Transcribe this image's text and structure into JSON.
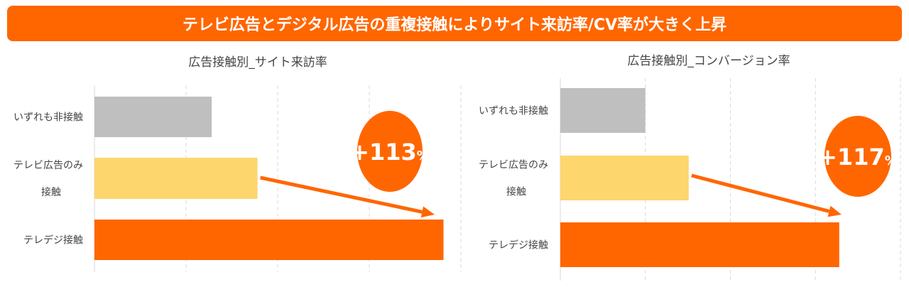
{
  "banner": {
    "title": "テレビ広告とデジタル広告の重複接触によりサイト来訪率/CV率が大きく上昇",
    "color": "#FF6600"
  },
  "chart_data": [
    {
      "type": "bar",
      "orientation": "horizontal",
      "title": "広告接触別_サイト来訪率",
      "categories": [
        [
          "いずれも非接触"
        ],
        [
          "テレビ広告のみ",
          "接触"
        ],
        [
          "テレデジ接触"
        ]
      ],
      "values": [
        1.28,
        1.78,
        3.81
      ],
      "value_units": "relative (gridline units, axis unlabeled)",
      "xlim": [
        0,
        4
      ],
      "grid": true,
      "colors": [
        "#BFBFBF",
        "#FDD66E",
        "#FF6600"
      ],
      "annotation": {
        "value": "+113",
        "suffix": "%"
      }
    },
    {
      "type": "bar",
      "orientation": "horizontal",
      "title": "広告接触別_コンバージョン率",
      "categories": [
        [
          "いずれも非接触"
        ],
        [
          "テレビ広告のみ",
          "接触"
        ],
        [
          "テレデジ接触"
        ]
      ],
      "values": [
        1.0,
        1.51,
        3.28
      ],
      "value_units": "relative (gridline units, axis unlabeled)",
      "xlim": [
        0,
        4
      ],
      "grid": true,
      "colors": [
        "#BFBFBF",
        "#FDD66E",
        "#FF6600"
      ],
      "annotation": {
        "value": "+117",
        "suffix": "%"
      }
    }
  ]
}
